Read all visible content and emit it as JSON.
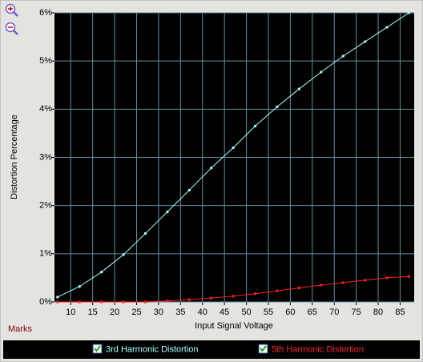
{
  "chart_data": {
    "type": "line",
    "xlabel": "Input Signal Voltage",
    "ylabel": "Distortion Percentage",
    "marks_label": "Marks",
    "x": [
      7,
      12,
      17,
      22,
      27,
      32,
      37,
      42,
      47,
      52,
      57,
      62,
      67,
      72,
      77,
      82,
      87
    ],
    "series": [
      {
        "name": "3rd Harmonic Distortion",
        "color": "#a8ffff",
        "values": [
          0.1,
          0.32,
          0.62,
          0.98,
          1.42,
          1.87,
          2.32,
          2.78,
          3.2,
          3.65,
          4.05,
          4.42,
          4.77,
          5.1,
          5.4,
          5.7,
          6.0
        ]
      },
      {
        "name": "5th Harmonic Distortion",
        "color": "#ff2020",
        "values": [
          0,
          0,
          0,
          0,
          0,
          0.02,
          0.05,
          0.08,
          0.12,
          0.17,
          0.23,
          0.29,
          0.35,
          0.4,
          0.45,
          0.5,
          0.53
        ]
      }
    ],
    "xlim": [
      6.3,
      88.2
    ],
    "xticks": [
      10,
      15,
      20,
      25,
      30,
      35,
      40,
      45,
      50,
      55,
      60,
      65,
      70,
      75,
      80,
      85
    ],
    "ylim": [
      0,
      6
    ],
    "yticks": [
      {
        "value": 0,
        "label": "0%"
      },
      {
        "value": 1,
        "label": "1%"
      },
      {
        "value": 2,
        "label": "2%"
      },
      {
        "value": 3,
        "label": "3%"
      },
      {
        "value": 4,
        "label": "4%"
      },
      {
        "value": 5,
        "label": "5%"
      },
      {
        "value": 6,
        "label": "6%"
      }
    ],
    "grid": true
  }
}
